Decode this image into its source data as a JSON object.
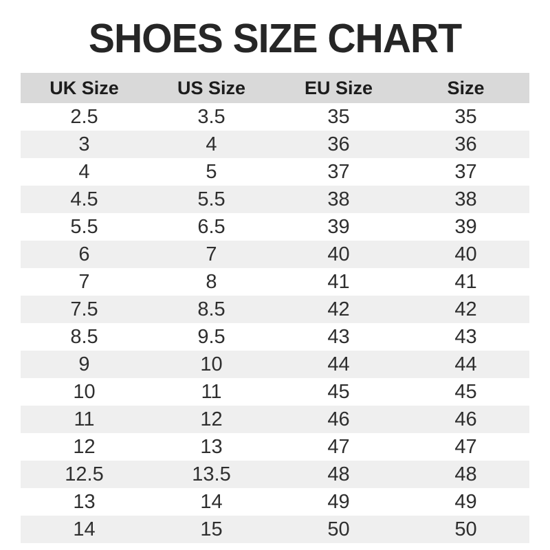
{
  "title": "SHOES SIZE CHART",
  "colors": {
    "header_bg": "#d9d9d9",
    "row_bg": "#ffffff",
    "row_alt_bg": "#efefef",
    "title_color": "#262626",
    "text_color": "#2e2e2e"
  },
  "table": {
    "headers": [
      "UK Size",
      "US Size",
      "EU Size",
      "Size"
    ],
    "rows": [
      [
        "2.5",
        "3.5",
        "35",
        "35"
      ],
      [
        "3",
        "4",
        "36",
        "36"
      ],
      [
        "4",
        "5",
        "37",
        "37"
      ],
      [
        "4.5",
        "5.5",
        "38",
        "38"
      ],
      [
        "5.5",
        "6.5",
        "39",
        "39"
      ],
      [
        "6",
        "7",
        "40",
        "40"
      ],
      [
        "7",
        "8",
        "41",
        "41"
      ],
      [
        "7.5",
        "8.5",
        "42",
        "42"
      ],
      [
        "8.5",
        "9.5",
        "43",
        "43"
      ],
      [
        "9",
        "10",
        "44",
        "44"
      ],
      [
        "10",
        "11",
        "45",
        "45"
      ],
      [
        "11",
        "12",
        "46",
        "46"
      ],
      [
        "12",
        "13",
        "47",
        "47"
      ],
      [
        "12.5",
        "13.5",
        "48",
        "48"
      ],
      [
        "13",
        "14",
        "49",
        "49"
      ],
      [
        "14",
        "15",
        "50",
        "50"
      ]
    ]
  },
  "chart_data": {
    "type": "table",
    "title": "SHOES SIZE CHART",
    "columns": [
      "UK Size",
      "US Size",
      "EU Size",
      "Size"
    ],
    "rows": [
      [
        "2.5",
        "3.5",
        "35",
        "35"
      ],
      [
        "3",
        "4",
        "36",
        "36"
      ],
      [
        "4",
        "5",
        "37",
        "37"
      ],
      [
        "4.5",
        "5.5",
        "38",
        "38"
      ],
      [
        "5.5",
        "6.5",
        "39",
        "39"
      ],
      [
        "6",
        "7",
        "40",
        "40"
      ],
      [
        "7",
        "8",
        "41",
        "41"
      ],
      [
        "7.5",
        "8.5",
        "42",
        "42"
      ],
      [
        "8.5",
        "9.5",
        "43",
        "43"
      ],
      [
        "9",
        "10",
        "44",
        "44"
      ],
      [
        "10",
        "11",
        "45",
        "45"
      ],
      [
        "11",
        "12",
        "46",
        "46"
      ],
      [
        "12",
        "13",
        "47",
        "47"
      ],
      [
        "12.5",
        "13.5",
        "48",
        "48"
      ],
      [
        "13",
        "14",
        "49",
        "49"
      ],
      [
        "14",
        "15",
        "50",
        "50"
      ]
    ],
    "layout": {
      "zebra_striping": true,
      "header_background": "#d9d9d9",
      "alt_row_background": "#efefef",
      "text_alignment": "center"
    }
  }
}
